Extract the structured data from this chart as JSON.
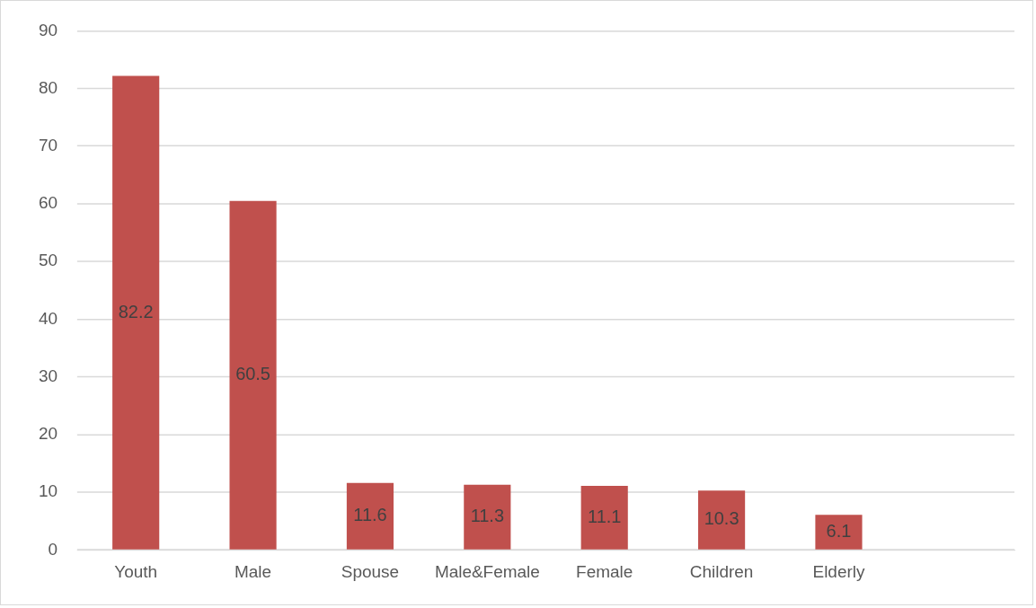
{
  "chart_data": {
    "type": "bar",
    "categories": [
      "Youth",
      "Male",
      "Spouse",
      "Male&Female",
      "Female",
      "Children",
      "Elderly",
      null
    ],
    "values": [
      82.2,
      60.5,
      11.6,
      11.3,
      11.1,
      10.3,
      6.1,
      null
    ],
    "color": "#c0504d",
    "ylim": [
      0,
      90
    ],
    "yticks": [
      0,
      10,
      20,
      30,
      40,
      50,
      60,
      70,
      80,
      90
    ],
    "grid": "y",
    "data_labels": true,
    "legend": false
  }
}
